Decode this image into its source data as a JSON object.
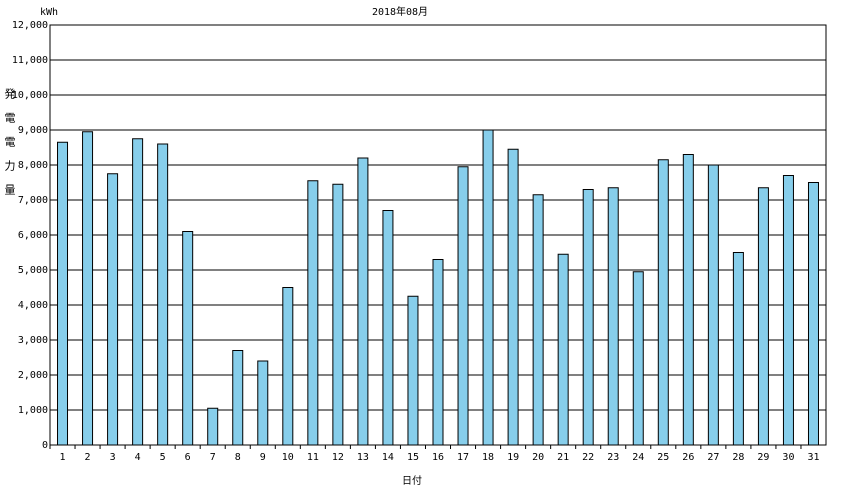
{
  "chart_data": {
    "type": "bar",
    "title": "2018年08月",
    "unit": "kWh",
    "y_label": "発電電力量",
    "x_label": "日付",
    "categories": [
      "1",
      "2",
      "3",
      "4",
      "5",
      "6",
      "7",
      "8",
      "9",
      "10",
      "11",
      "12",
      "13",
      "14",
      "15",
      "16",
      "17",
      "18",
      "19",
      "20",
      "21",
      "22",
      "23",
      "24",
      "25",
      "26",
      "27",
      "28",
      "29",
      "30",
      "31"
    ],
    "values": [
      8650,
      8950,
      7750,
      8750,
      8600,
      6100,
      1050,
      2700,
      2400,
      4500,
      7550,
      7450,
      8200,
      6700,
      4250,
      5300,
      7950,
      9000,
      8450,
      7150,
      5450,
      7300,
      7350,
      4950,
      8150,
      8300,
      8000,
      5500,
      7350,
      7700,
      7500
    ],
    "color": "#87ceeb",
    "ylim": [
      0,
      12000
    ],
    "yticks": [
      0,
      {
        "value": 1000,
        "label": "1,000"
      },
      {
        "value": 2000,
        "label": "2,000"
      },
      {
        "value": 3000,
        "label": "3,000"
      },
      {
        "value": 4000,
        "label": "4,000"
      },
      {
        "value": 5000,
        "label": "5,000"
      },
      {
        "value": 6000,
        "label": "6,000"
      },
      {
        "value": 7000,
        "label": "7,000"
      },
      {
        "value": 8000,
        "label": "8,000"
      },
      {
        "value": 9000,
        "label": "9,000"
      },
      {
        "value": 10000,
        "label": "10,000"
      },
      {
        "value": 11000,
        "label": "11,000"
      },
      {
        "value": 12000,
        "label": "12,000"
      }
    ],
    "grid": true
  }
}
